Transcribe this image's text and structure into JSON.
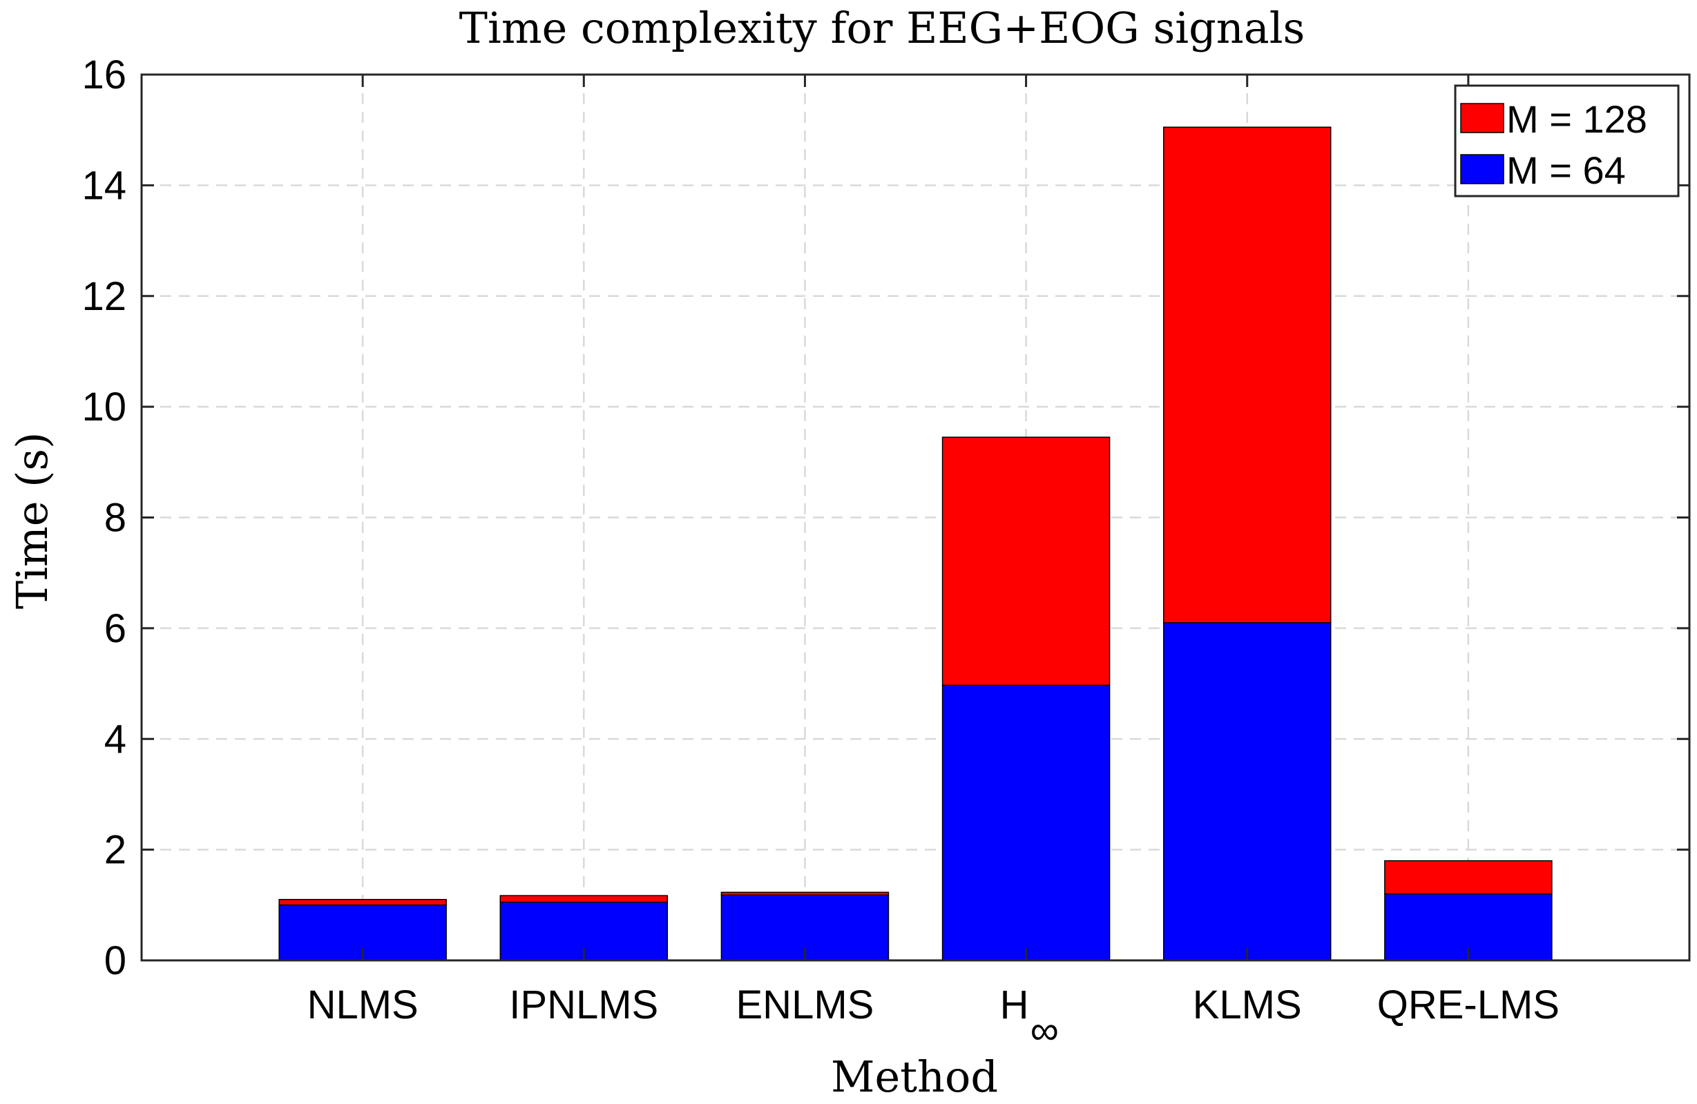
{
  "chart_data": {
    "type": "bar",
    "stacked": true,
    "title": "Time complexity for EEG+EOG signals",
    "xlabel": "Method",
    "ylabel": "Time (s)",
    "categories": [
      "NLMS",
      "IPNLMS",
      "ENLMS",
      "H∞",
      "KLMS",
      "QRE-LMS"
    ],
    "category_labels": [
      {
        "main": "NLMS",
        "sub": ""
      },
      {
        "main": "IPNLMS",
        "sub": ""
      },
      {
        "main": "ENLMS",
        "sub": ""
      },
      {
        "main": "H",
        "sub": "∞"
      },
      {
        "main": "KLMS",
        "sub": ""
      },
      {
        "main": "QRE-LMS",
        "sub": ""
      }
    ],
    "series": [
      {
        "name": "M = 64",
        "color": "#0000ff",
        "values": [
          1.0,
          1.05,
          1.18,
          4.97,
          6.1,
          1.2
        ]
      },
      {
        "name": "M = 128",
        "color": "#ff0000",
        "values": [
          0.1,
          0.12,
          0.05,
          4.48,
          8.95,
          0.6
        ]
      }
    ],
    "ylim": [
      0,
      16
    ],
    "yticks": [
      0,
      2,
      4,
      6,
      8,
      10,
      12,
      14,
      16
    ],
    "grid": true,
    "legend_position": "top-right",
    "legend_order": [
      "M = 128",
      "M = 64"
    ]
  }
}
